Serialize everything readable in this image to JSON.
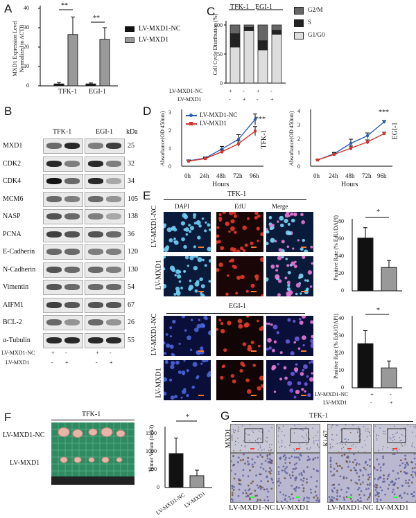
{
  "panelA": {
    "letter": "A",
    "ylabel": "MXD1 Expression Level\nNormalized to ACTB",
    "ticks": [
      "0",
      "10",
      "20",
      "30",
      "40"
    ],
    "groups": [
      "TFK-1",
      "EGI-1"
    ],
    "sig": [
      "**",
      "**"
    ],
    "legend": [
      "LV-MXD1-NC",
      "LV-MXD1"
    ]
  },
  "panelB": {
    "letter": "B",
    "lines": [
      "TFK-1",
      "EGI-1"
    ],
    "kda": "kDa",
    "rows": [
      {
        "name": "MXD1",
        "kda": "25"
      },
      {
        "name": "CDK2",
        "kda": "32"
      },
      {
        "name": "CDK4",
        "kda": "34"
      },
      {
        "name": "MCM6",
        "kda": "105"
      },
      {
        "name": "NASP",
        "kda": "138"
      },
      {
        "name": "PCNA",
        "kda": "36"
      },
      {
        "name": "E-Cadherin",
        "kda": "120"
      },
      {
        "name": "N-Cadherin",
        "kda": "130"
      },
      {
        "name": "Vimentin",
        "kda": "54"
      },
      {
        "name": "AIFM1",
        "kda": "67"
      },
      {
        "name": "BCL-2",
        "kda": "26"
      },
      {
        "name": "α-Tubulin",
        "kda": "55"
      }
    ],
    "rowNC": "LV-MXD1-NC",
    "rowMXD1": "LV-MXD1",
    "signsNC": [
      "+",
      "-",
      "+",
      "-"
    ],
    "signsMXD1": [
      "-",
      "+",
      "-",
      "+"
    ]
  },
  "panelC": {
    "letter": "C",
    "ylabel": "Cell Cycle Distribution (%)",
    "ticks": [
      "0",
      "50",
      "100"
    ],
    "lines": [
      "TFK-1",
      "EGI-1"
    ],
    "legend": [
      "G2/M",
      "S",
      "G1/G0"
    ],
    "rowNC": "LV-MXD1-NC",
    "rowMXD1": "LV-MXD1",
    "signsNC": [
      "+",
      "-",
      "+",
      "-"
    ],
    "signsMXD1": [
      "-",
      "+",
      "-",
      "+"
    ]
  },
  "panelD": {
    "letter": "D",
    "ylabel": "Absorbance(OD 450nm)",
    "xlabel": "Hours",
    "xticks": [
      "0h",
      "24h",
      "48h",
      "72h",
      "96h"
    ],
    "left": {
      "ticks": [
        "0",
        "1",
        "2",
        "3"
      ],
      "line": "TFK-1",
      "sig": "***"
    },
    "right": {
      "ticks": [
        "0",
        "1",
        "2",
        "3",
        "4"
      ],
      "line": "EGI-1",
      "sig": "***"
    },
    "legend": [
      "LV-MXD1-NC",
      "LV-MXD1"
    ]
  },
  "panelE": {
    "letter": "E",
    "line1": "TFK-1",
    "line2": "EGI-1",
    "cols": [
      "DAPI",
      "EdU",
      "Merge"
    ],
    "rows": [
      "LV-MXD1-NC",
      "LV-MXD1",
      "LV-MXD1-NC",
      "LV-MXD1"
    ],
    "ylabel": "Positive Rate (% EdU/DAPI)",
    "ticksTop": [
      "0",
      "20",
      "40",
      "60",
      "80"
    ],
    "ticksBot": [
      "0",
      "10",
      "20",
      "30",
      "40"
    ],
    "sig": "*",
    "rowNC": "LV-MXD1-NC",
    "rowMXD1": "LV-MXD1",
    "signsNC": [
      "+",
      "-"
    ],
    "signsMXD1": [
      "-",
      "+"
    ]
  },
  "panelF": {
    "letter": "F",
    "line": "TFK-1",
    "rows": [
      "LV-MXD1-NC",
      "LV-MXD1"
    ],
    "ylabel": "Tumor Volum (mm3)",
    "ticks": [
      "0",
      "500",
      "1000",
      "1500"
    ],
    "sig": "*",
    "cats": [
      "LV-MXD1-NC",
      "LV-MXD1"
    ]
  },
  "panelG": {
    "letter": "G",
    "line": "TFK-1",
    "stains": [
      "MXD1",
      "Ki-67"
    ],
    "cols": [
      "LV-MXD1-NC",
      "LV-MXD1",
      "LV-MXD1-NC",
      "LV-MXD1"
    ]
  },
  "chart_data": [
    {
      "type": "bar",
      "title": "",
      "ylabel": "MXD1 Expression Level Normalized to ACTB",
      "ylim": [
        0,
        40
      ],
      "categories": [
        "TFK-1",
        "EGI-1"
      ],
      "series": [
        {
          "name": "LV-MXD1-NC",
          "values": [
            1,
            1
          ],
          "err": [
            0.8,
            0.5
          ]
        },
        {
          "name": "LV-MXD1",
          "values": [
            26.5,
            24
          ],
          "err": [
            9,
            6
          ]
        }
      ]
    },
    {
      "type": "bar",
      "ylabel": "Cell Cycle Distribution (%)",
      "ylim": [
        0,
        100
      ],
      "categories": [
        "TFK-1 NC",
        "TFK-1 MXD1",
        "EGI-1 NC",
        "EGI-1 MXD1"
      ],
      "series": [
        {
          "name": "G1/G0",
          "values": [
            62,
            90,
            57,
            84
          ]
        },
        {
          "name": "S",
          "values": [
            23,
            6,
            16,
            7
          ]
        },
        {
          "name": "G2/M",
          "values": [
            15,
            4,
            27,
            9
          ]
        }
      ]
    },
    {
      "type": "line",
      "ylabel": "Absorbance(OD 450nm)",
      "xlabel": "Hours",
      "ylim": [
        0,
        3
      ],
      "x": [
        "0h",
        "24h",
        "48h",
        "72h",
        "96h"
      ],
      "series": [
        {
          "name": "LV-MXD1-NC",
          "values": [
            0.3,
            0.45,
            0.95,
            1.5,
            2.6
          ],
          "err": [
            0.05,
            0.06,
            0.15,
            0.25,
            0.3
          ]
        },
        {
          "name": "LV-MXD1",
          "values": [
            0.28,
            0.42,
            0.8,
            1.25,
            1.95
          ],
          "err": [
            0.05,
            0.05,
            0.1,
            0.15,
            0.25
          ]
        }
      ]
    },
    {
      "type": "line",
      "ylabel": "Absorbance(OD 450nm)",
      "xlabel": "Hours",
      "ylim": [
        0,
        4
      ],
      "x": [
        "0h",
        "24h",
        "48h",
        "72h",
        "96h"
      ],
      "series": [
        {
          "name": "LV-MXD1-NC",
          "values": [
            0.45,
            0.9,
            1.65,
            2.2,
            3.2
          ],
          "err": [
            0.05,
            0.1,
            0.3,
            0.2,
            0.1
          ]
        },
        {
          "name": "LV-MXD1",
          "values": [
            0.45,
            0.85,
            1.3,
            1.75,
            2.35
          ],
          "err": [
            0.05,
            0.1,
            0.15,
            0.15,
            0.1
          ]
        }
      ]
    },
    {
      "type": "bar",
      "ylabel": "Positive Rate (% EdU/DAPI)",
      "ylim": [
        0,
        80
      ],
      "categories": [
        "LV-MXD1-NC",
        "LV-MXD1"
      ],
      "values": [
        61,
        27
      ],
      "err": [
        12,
        8
      ]
    },
    {
      "type": "bar",
      "ylabel": "Positive Rate (% EdU/DAPI)",
      "ylim": [
        0,
        40
      ],
      "categories": [
        "LV-MXD1-NC",
        "LV-MXD1"
      ],
      "values": [
        25.5,
        11.5
      ],
      "err": [
        7.5,
        4
      ]
    },
    {
      "type": "bar",
      "ylabel": "Tumor Volum (mm3)",
      "ylim": [
        0,
        1500
      ],
      "categories": [
        "LV-MXD1-NC",
        "LV-MXD1"
      ],
      "values": [
        920,
        320
      ],
      "err": [
        420,
        150
      ]
    }
  ]
}
